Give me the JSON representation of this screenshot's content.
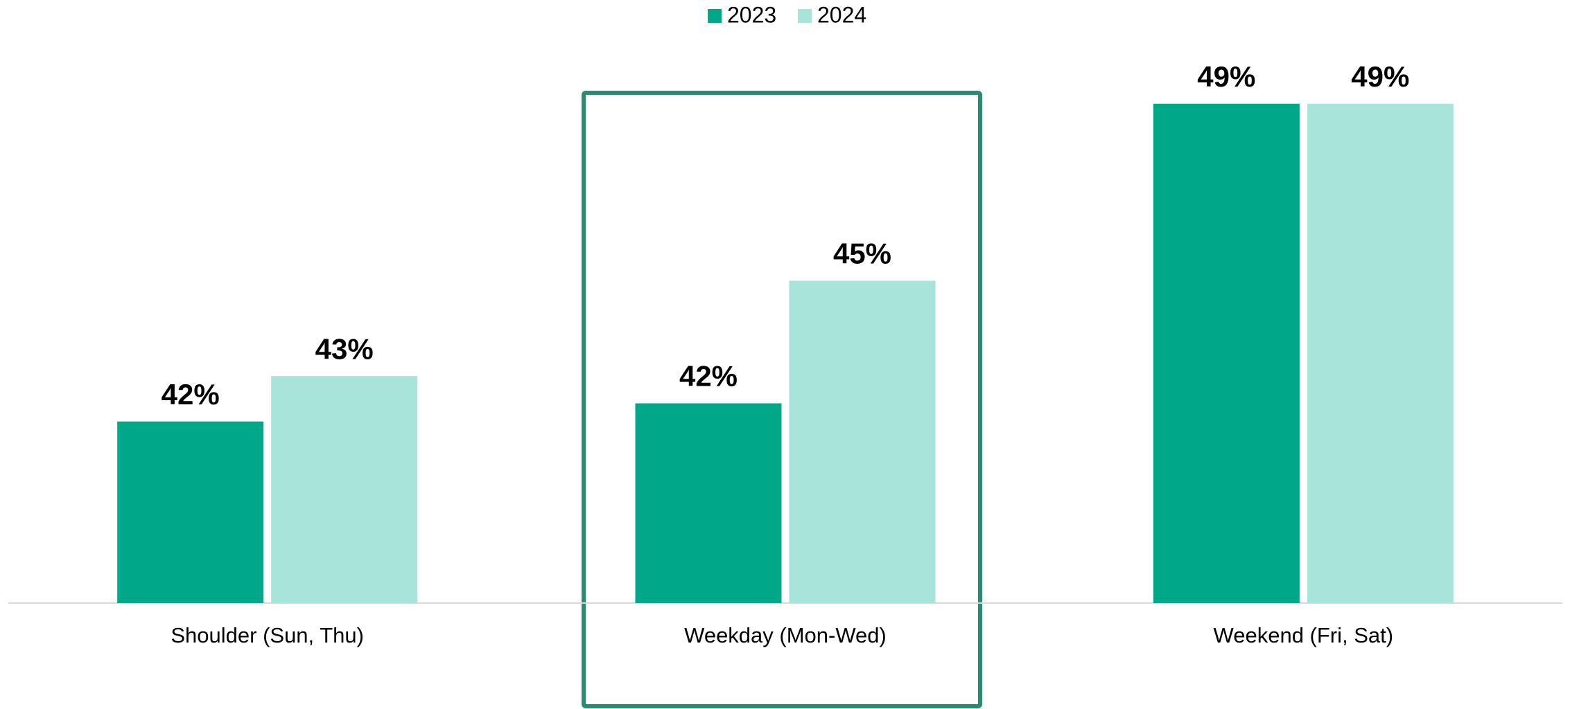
{
  "chart_data": {
    "type": "bar",
    "categories": [
      "Shoulder (Sun, Thu)",
      "Weekday (Mon-Wed)",
      "Weekend (Fri, Sat)"
    ],
    "series": [
      {
        "name": "2023",
        "color": "#00a88a",
        "values": [
          42.0,
          42.4,
          49.0
        ],
        "value_labels": [
          "42%",
          "42%",
          "49%"
        ]
      },
      {
        "name": "2024",
        "color": "#a8e4d9",
        "values": [
          43.0,
          45.1,
          49.0
        ],
        "value_labels": [
          "43%",
          "45%",
          "49%"
        ]
      }
    ],
    "ylim": [
      38,
      50.4
    ],
    "legend": "top"
  }
}
